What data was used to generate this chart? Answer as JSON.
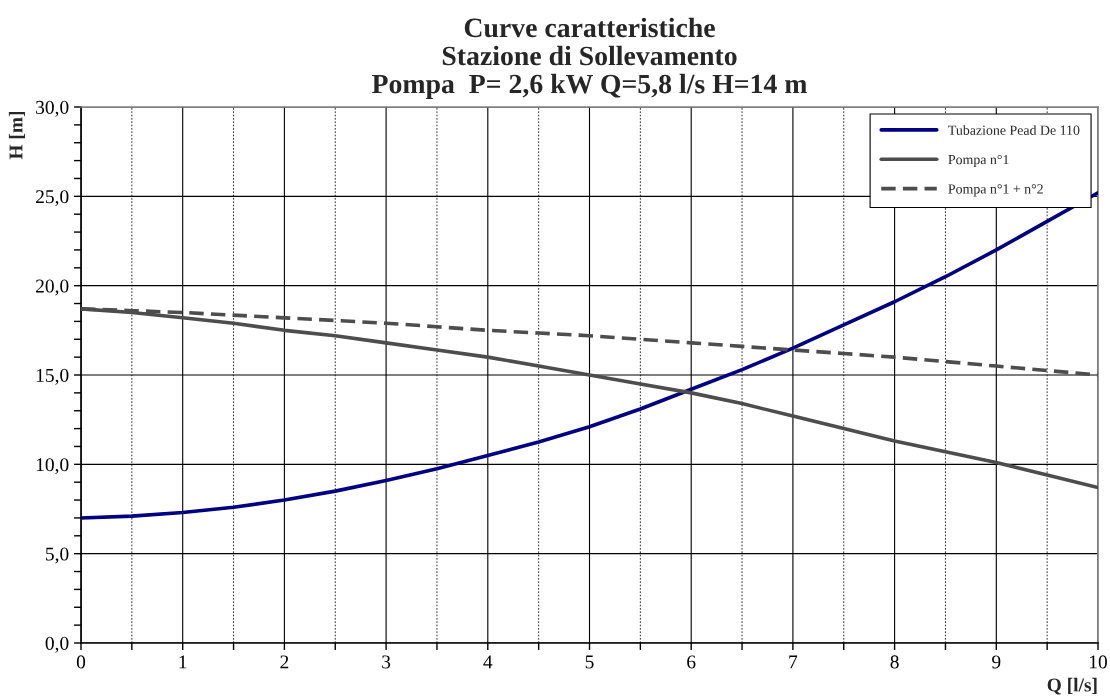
{
  "chart_data": {
    "type": "line",
    "title": "Curve caratteristiche\nStazione di Sollevamento\nPompa  P= 2,6 kW Q=5,8 l/s H=14 m",
    "xlabel": "Q [l/s]",
    "ylabel": "H [m]",
    "x": [
      0,
      0.5,
      1,
      1.5,
      2,
      2.5,
      3,
      3.5,
      4,
      4.5,
      5,
      5.5,
      6,
      6.5,
      7,
      7.5,
      8,
      8.5,
      9,
      9.5,
      10
    ],
    "series": [
      {
        "name": "Tubazione Pead De 110",
        "color": "#000080",
        "line_style": "solid",
        "values": [
          7.0,
          7.1,
          7.3,
          7.6,
          8.0,
          8.5,
          9.1,
          9.75,
          10.5,
          11.25,
          12.1,
          13.1,
          14.2,
          15.3,
          16.5,
          17.8,
          19.1,
          20.5,
          22.0,
          23.6,
          25.2
        ]
      },
      {
        "name": "Pompa n°1",
        "color": "#4d4d4d",
        "line_style": "solid",
        "values": [
          18.7,
          18.5,
          18.2,
          17.9,
          17.5,
          17.2,
          16.8,
          16.4,
          16.0,
          15.5,
          15.0,
          14.5,
          14.0,
          13.4,
          12.7,
          12.0,
          11.3,
          10.7,
          10.1,
          9.4,
          8.7
        ]
      },
      {
        "name": "Pompa n°1 + n°2",
        "color": "#4d4d4d",
        "line_style": "dashed",
        "values": [
          18.7,
          18.6,
          18.5,
          18.35,
          18.2,
          18.05,
          17.9,
          17.7,
          17.5,
          17.35,
          17.2,
          17.0,
          16.8,
          16.6,
          16.4,
          16.2,
          16.0,
          15.75,
          15.5,
          15.25,
          15.0
        ]
      }
    ],
    "xlim": [
      0,
      10
    ],
    "ylim": [
      0,
      30
    ],
    "xticks": [
      0,
      {
        "value": 0.5,
        "label": null
      },
      1,
      {
        "value": 1.5,
        "label": null
      },
      2,
      {
        "value": 2.5,
        "label": null
      },
      3,
      {
        "value": 3.5,
        "label": null
      },
      4,
      {
        "value": 4.5,
        "label": null
      },
      5,
      {
        "value": 5.5,
        "label": null
      },
      6,
      {
        "value": 6.5,
        "label": null
      },
      7,
      {
        "value": 7.5,
        "label": null
      },
      8,
      {
        "value": 8.5,
        "label": null
      },
      9,
      {
        "value": 9.5,
        "label": null
      },
      10
    ],
    "yticks": [
      {
        "value": 0,
        "label": "0,0"
      },
      {
        "value": 5,
        "label": "5,0"
      },
      {
        "value": 10,
        "label": "10,0"
      },
      {
        "value": 15,
        "label": "15,0"
      },
      {
        "value": 20,
        "label": "20,0"
      },
      {
        "value": 25,
        "label": "25,0"
      },
      {
        "value": 30,
        "label": "30,0"
      },
      {
        "value": 1,
        "label": null
      },
      {
        "value": 2,
        "label": null
      },
      {
        "value": 3,
        "label": null
      },
      {
        "value": 4,
        "label": null
      },
      {
        "value": 6,
        "label": null
      },
      {
        "value": 7,
        "label": null
      },
      {
        "value": 8,
        "label": null
      },
      {
        "value": 9,
        "label": null
      },
      {
        "value": 11,
        "label": null
      },
      {
        "value": 12,
        "label": null
      },
      {
        "value": 13,
        "label": null
      },
      {
        "value": 14,
        "label": null
      },
      {
        "value": 16,
        "label": null
      },
      {
        "value": 17,
        "label": null
      },
      {
        "value": 18,
        "label": null
      },
      {
        "value": 19,
        "label": null
      },
      {
        "value": 21,
        "label": null
      },
      {
        "value": 22,
        "label": null
      },
      {
        "value": 23,
        "label": null
      },
      {
        "value": 24,
        "label": null
      },
      {
        "value": 26,
        "label": null
      },
      {
        "value": 27,
        "label": null
      },
      {
        "value": 28,
        "label": null
      },
      {
        "value": 29,
        "label": null
      }
    ],
    "grid": true,
    "legend": "top right",
    "marker": "none"
  }
}
